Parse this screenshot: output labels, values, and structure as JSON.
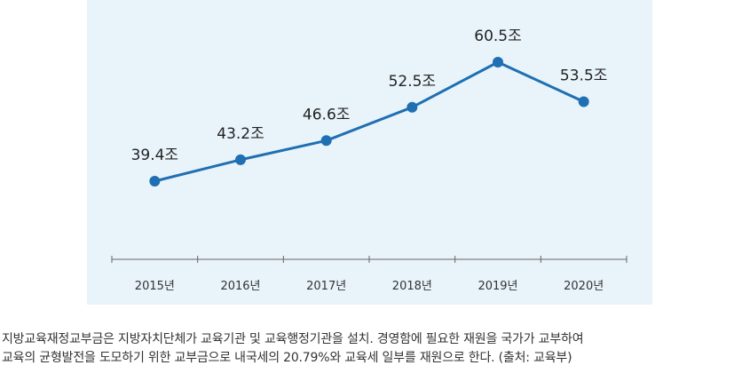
{
  "chart_data": {
    "type": "line",
    "title": "",
    "xlabel": "",
    "ylabel": "",
    "categories": [
      "2015년",
      "2016년",
      "2017년",
      "2018년",
      "2019년",
      "2020년"
    ],
    "series": [
      {
        "name": "지방교육재정교부금",
        "values": [
          39.4,
          43.2,
          46.6,
          52.5,
          60.5,
          53.5
        ],
        "labels": [
          "39.4조",
          "43.2조",
          "46.6조",
          "52.5조",
          "60.5조",
          "53.5조"
        ]
      }
    ],
    "ylim": [
      15,
      65
    ],
    "grid": false,
    "legend": "none",
    "colors": {
      "background": "#e8f4fa",
      "line": "#1f6fb2",
      "axis": "#666666"
    }
  },
  "caption": {
    "line1": "지방교육재정교부금은 지방자치단체가 교육기관 및 교육행정기관을 설치. 경영함에 필요한 재원을 국가가 교부하여",
    "line2": "교육의 균형발전을 도모하기 위한 교부금으로 내국세의 20.79%와 교육세 일부를 재원으로 한다. (출처: 교육부)"
  }
}
